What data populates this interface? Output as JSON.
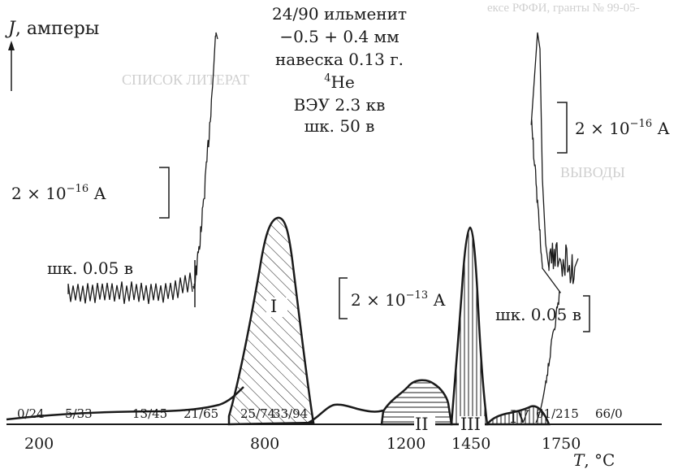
{
  "chart_data": {
    "type": "line",
    "ylabel_symbol": "J",
    "ylabel_unit": ", амперы",
    "xlabel_symbol": "T",
    "xlabel_unit": ", °C",
    "x_ticks": [
      "200",
      "800",
      "1200",
      "1450",
      "1750"
    ],
    "ratio_labels": [
      "0/24",
      "5/33",
      "13/45",
      "21/65",
      "25/74",
      "33/94",
      "61/215",
      "66/0"
    ],
    "header_lines": [
      "24/90 ильменит",
      "−0.5 + 0.4 мм",
      "навеска 0.13 г.",
      "He",
      "ВЭУ 2.3 кв",
      "шк. 50 в"
    ],
    "isotope_mass": "4",
    "peaks": [
      "I",
      "II",
      "III",
      "IV"
    ],
    "scale_bars": {
      "left_value": "2 × 10",
      "left_exp": "−16",
      "left_unit": " А",
      "middle_value": "2 × 10",
      "middle_exp": "−13",
      "middle_unit": " А",
      "right_value": "2 × 10",
      "right_exp": "−16",
      "right_unit": " А"
    },
    "sensitivity_labels": [
      "шк. 0.05 в",
      "шк. 0.05 в"
    ]
  },
  "background_text": {
    "top": "ексе РФФИ, гранты № 99-05-",
    "right_heading": "ВЫВОДЫ",
    "left_heading": "СПИСОК ЛИТЕРАТ"
  },
  "colors": {
    "ink": "#1a1a1a",
    "paper": "#ffffff",
    "bleed": "#cfcfcf"
  }
}
